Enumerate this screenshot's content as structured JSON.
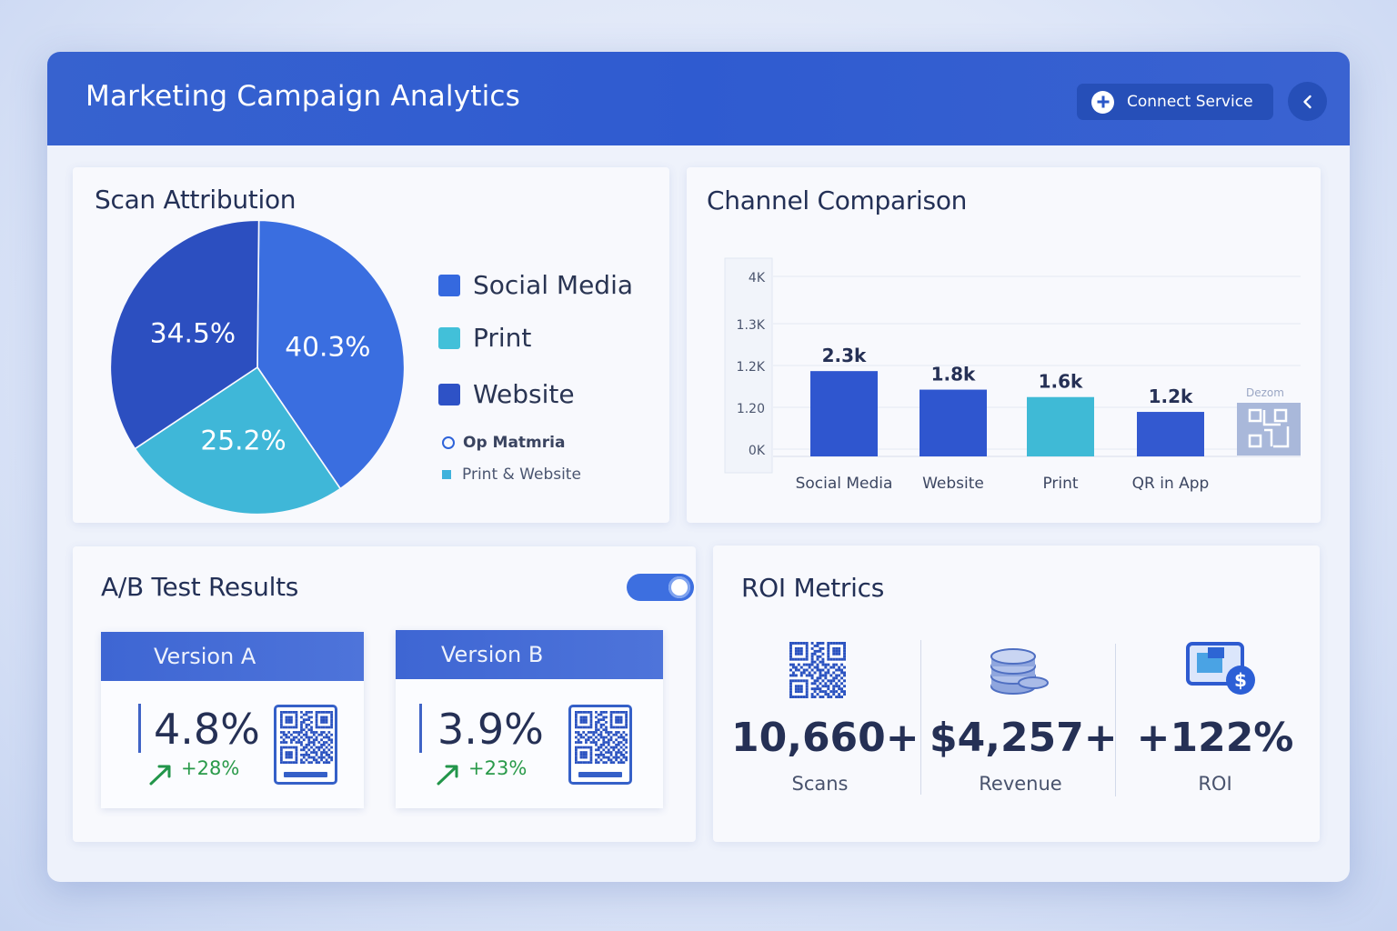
{
  "app": {
    "title": "Marketing Campaign Analytics",
    "connect_label": "Connect Service"
  },
  "scan_attribution": {
    "title": "Scan Attribution",
    "slices": [
      {
        "label": "40.3%",
        "value": 40.3,
        "color": "#3a6ee0"
      },
      {
        "label": "25.2%",
        "value": 25.2,
        "color": "#3fb7d8"
      },
      {
        "label": "34.5%",
        "value": 34.5,
        "color": "#2c4fc0"
      }
    ],
    "legend": [
      {
        "label": "Social Media",
        "color": "#3569df"
      },
      {
        "label": "Print",
        "color": "#42c0d9"
      },
      {
        "label": "Website",
        "color": "#2e52c6"
      }
    ],
    "legend_small": [
      {
        "label": "Op Matmria",
        "style": "ring",
        "color": "#2e63d9"
      },
      {
        "label": "Print & Website",
        "style": "square",
        "color": "#3fb2dc"
      }
    ]
  },
  "channel_comparison": {
    "title": "Channel Comparison",
    "watermark": "Dezom"
  },
  "chart_data": {
    "type": "bar",
    "title": "Channel Comparison",
    "categories": [
      "Social Media",
      "Website",
      "Print",
      "QR in App"
    ],
    "values": [
      2.3,
      1.8,
      1.6,
      1.2
    ],
    "value_labels": [
      "2.3k",
      "1.8k",
      "1.6k",
      "1.2k"
    ],
    "colors": [
      "#2f56cf",
      "#2f56cf",
      "#3fbad6",
      "#3359d0"
    ],
    "y_tick_labels": [
      "4K",
      "1.3K",
      "1.2K",
      "1.20",
      "0K"
    ],
    "grid": true
  },
  "ab_test": {
    "title": "A/B Test Results",
    "toggle_on": true,
    "versions": [
      {
        "name": "Version A",
        "rate": "4.8%",
        "delta": "+28%"
      },
      {
        "name": "Version B",
        "rate": "3.9%",
        "delta": "+23%"
      }
    ]
  },
  "roi": {
    "title": "ROI Metrics",
    "metrics": [
      {
        "value": "10,660+",
        "label": "Scans",
        "icon": "qr-code-icon"
      },
      {
        "value": "$4,257+",
        "label": "Revenue",
        "icon": "coin-stack-icon"
      },
      {
        "value": "+122%",
        "label": "ROI",
        "icon": "dollar-screen-icon"
      }
    ]
  }
}
